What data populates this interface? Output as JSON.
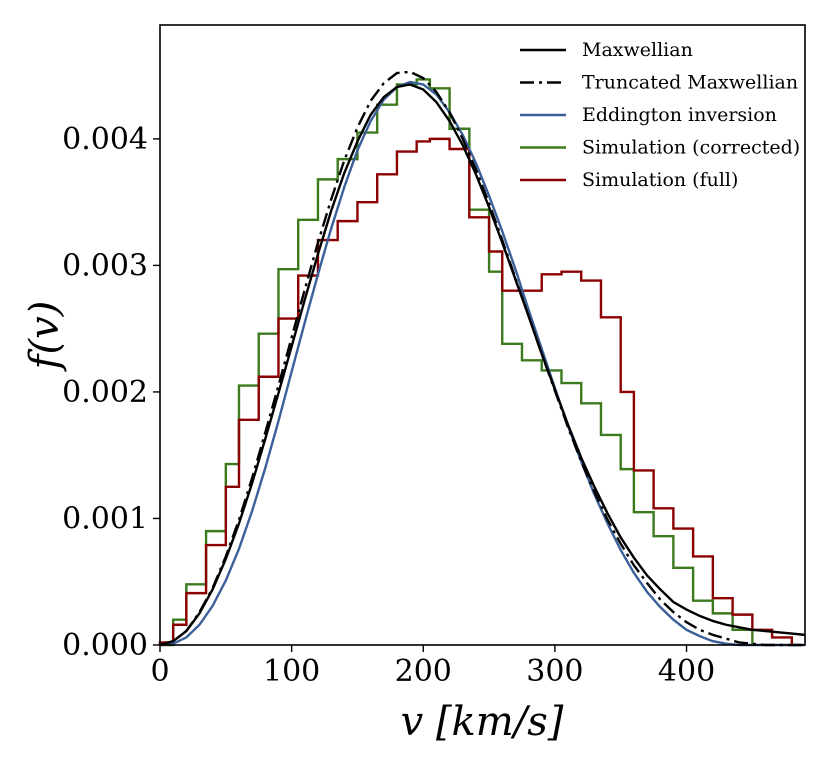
{
  "chart_data": {
    "type": "line",
    "xlabel": "v [km/s]",
    "ylabel": "f(v)",
    "xlim": [
      0,
      490
    ],
    "ylim": [
      0,
      0.0049
    ],
    "x_ticks": [
      0,
      100,
      200,
      300,
      400
    ],
    "x_tick_labels": [
      "0",
      "100",
      "200",
      "300",
      "400"
    ],
    "y_ticks": [
      0,
      0.001,
      0.002,
      0.003,
      0.004
    ],
    "y_tick_labels": [
      "0.000",
      "0.001",
      "0.002",
      "0.003",
      "0.004"
    ],
    "legend_position": "top-right",
    "colors": {
      "maxwellian": "#000000",
      "truncated": "#000000",
      "eddington": "#3a5f99",
      "corrected": "#3c7a1e",
      "full": "#8b0000"
    },
    "series": [
      {
        "name": "Maxwellian",
        "kind": "line",
        "dash": "solid",
        "color": "#000000",
        "x": [
          0,
          10,
          20,
          30,
          40,
          50,
          60,
          70,
          80,
          90,
          100,
          110,
          120,
          130,
          140,
          150,
          160,
          170,
          180,
          190,
          200,
          210,
          220,
          230,
          240,
          250,
          260,
          270,
          280,
          290,
          300,
          310,
          320,
          330,
          340,
          350,
          360,
          370,
          380,
          390,
          400,
          410,
          420,
          430,
          440,
          450,
          460,
          470,
          480,
          490
        ],
        "y": [
          0,
          3e-05,
          0.00011,
          0.00025,
          0.00044,
          0.00068,
          0.00096,
          0.00128,
          0.00163,
          0.00199,
          0.00236,
          0.00273,
          0.00309,
          0.00343,
          0.00373,
          0.00398,
          0.00419,
          0.00433,
          0.00441,
          0.00443,
          0.00439,
          0.00429,
          0.00414,
          0.00395,
          0.00372,
          0.00346,
          0.00318,
          0.00289,
          0.0026,
          0.0023,
          0.00202,
          0.00174,
          0.00148,
          0.00125,
          0.00104,
          0.00085,
          0.00069,
          0.00055,
          0.00044,
          0.00034,
          0.00028,
          0.00023,
          0.00019,
          0.00016,
          0.00014,
          0.00012,
          0.00011,
          0.0001,
          9e-05,
          8e-05
        ]
      },
      {
        "name": "Truncated Maxwellian",
        "kind": "line",
        "dash": "dashdot",
        "color": "#000000",
        "x": [
          0,
          10,
          20,
          30,
          40,
          50,
          60,
          70,
          80,
          90,
          100,
          110,
          120,
          130,
          140,
          150,
          160,
          170,
          180,
          190,
          200,
          210,
          220,
          230,
          240,
          250,
          260,
          270,
          280,
          290,
          300,
          310,
          320,
          330,
          340,
          350,
          360,
          370,
          380,
          390,
          400,
          410,
          420,
          430,
          440,
          450,
          460,
          470,
          480,
          490
        ],
        "y": [
          0,
          3e-05,
          0.00011,
          0.00026,
          0.00045,
          0.0007,
          0.00099,
          0.00132,
          0.00168,
          0.00205,
          0.00243,
          0.00281,
          0.00318,
          0.00352,
          0.00383,
          0.00409,
          0.0043,
          0.00444,
          0.00452,
          0.00453,
          0.00448,
          0.00437,
          0.00421,
          0.004,
          0.00376,
          0.00349,
          0.0032,
          0.0029,
          0.0026,
          0.0023,
          0.00201,
          0.00172,
          0.00145,
          0.00121,
          0.00099,
          0.0008,
          0.00063,
          0.00049,
          0.00036,
          0.00026,
          0.00018,
          0.00012,
          8e-05,
          5e-05,
          2e-05,
          1e-05,
          0,
          0,
          0,
          0
        ]
      },
      {
        "name": "Eddington inversion",
        "kind": "line",
        "dash": "solid",
        "color": "#3a5f99",
        "x": [
          0,
          10,
          20,
          30,
          40,
          50,
          60,
          70,
          80,
          90,
          100,
          110,
          120,
          130,
          140,
          150,
          160,
          170,
          180,
          190,
          200,
          210,
          220,
          230,
          240,
          250,
          260,
          270,
          280,
          290,
          300,
          310,
          320,
          330,
          340,
          350,
          360,
          370,
          380,
          390,
          400,
          410,
          420,
          430,
          440,
          450,
          460,
          470,
          480,
          490
        ],
        "y": [
          0,
          1e-05,
          6e-05,
          0.00016,
          0.00031,
          0.00051,
          0.00076,
          0.00106,
          0.0014,
          0.00177,
          0.00216,
          0.00255,
          0.00293,
          0.00329,
          0.00362,
          0.00391,
          0.00414,
          0.00431,
          0.00441,
          0.00445,
          0.00443,
          0.00435,
          0.00421,
          0.00403,
          0.00381,
          0.00355,
          0.00327,
          0.00297,
          0.00265,
          0.00234,
          0.00203,
          0.00173,
          0.00145,
          0.00119,
          0.00096,
          0.00075,
          0.00057,
          0.00042,
          0.0003,
          0.0002,
          0.00012,
          7e-05,
          3e-05,
          1e-05,
          0,
          0,
          0,
          0,
          0,
          0
        ]
      },
      {
        "name": "Simulation (corrected)",
        "kind": "step",
        "color": "#3c7a1e",
        "bin_edges": [
          0,
          10,
          20,
          35,
          50,
          60,
          75,
          90,
          105,
          120,
          135,
          150,
          165,
          180,
          195,
          205,
          220,
          235,
          250,
          260,
          275,
          290,
          305,
          320,
          335,
          350,
          360,
          375,
          390,
          405,
          420,
          435
        ],
        "values": [
          0,
          0.0002,
          0.00048,
          0.0009,
          0.00143,
          0.00205,
          0.00246,
          0.00297,
          0.00336,
          0.00368,
          0.00384,
          0.00405,
          0.00427,
          0.00443,
          0.00447,
          0.0044,
          0.00408,
          0.00344,
          0.00295,
          0.00238,
          0.00225,
          0.00217,
          0.00207,
          0.00191,
          0.00166,
          0.00139,
          0.00105,
          0.00086,
          0.00061,
          0.00035,
          0.00025,
          0.00012
        ]
      },
      {
        "name": "Simulation (full)",
        "kind": "step",
        "color": "#8b0000",
        "bin_edges": [
          0,
          10,
          20,
          35,
          50,
          60,
          75,
          90,
          105,
          120,
          135,
          150,
          165,
          180,
          195,
          205,
          220,
          235,
          250,
          260,
          275,
          290,
          305,
          320,
          335,
          350,
          360,
          375,
          390,
          405,
          420,
          435,
          450,
          465
        ],
        "values": [
          2e-05,
          0.00016,
          0.00041,
          0.00079,
          0.00125,
          0.00178,
          0.00212,
          0.00258,
          0.00292,
          0.0032,
          0.00335,
          0.0035,
          0.00372,
          0.0039,
          0.00398,
          0.004,
          0.00392,
          0.00338,
          0.00311,
          0.0028,
          0.0028,
          0.00293,
          0.00295,
          0.00288,
          0.00259,
          0.002,
          0.00138,
          0.00108,
          0.00092,
          0.0007,
          0.00037,
          0.00024,
          0.00012,
          6e-05
        ]
      }
    ]
  }
}
